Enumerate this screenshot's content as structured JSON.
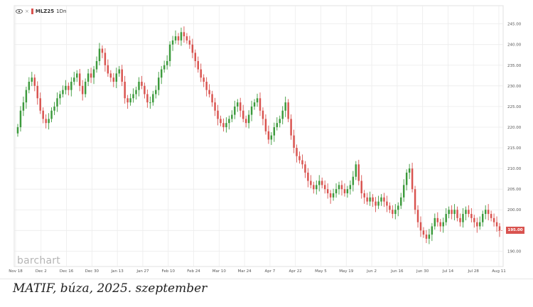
{
  "symbol": "MLZ25",
  "interval": "1Dn",
  "watermark": "barchart",
  "last_price": "195.00",
  "caption": "MATIF, búza, 2025. szeptember",
  "colors": {
    "up": "#3c9a3c",
    "down": "#d9534f",
    "grid": "#ececec",
    "axis_text": "#555555"
  },
  "chart_data": {
    "type": "candlestick",
    "title": "",
    "ylim": [
      188,
      247
    ],
    "yticks": [
      "190.00",
      "195.00",
      "200.00",
      "205.00",
      "210.00",
      "215.00",
      "220.00",
      "225.00",
      "230.00",
      "235.00",
      "240.00",
      "245.00"
    ],
    "ytick_values": [
      190,
      195,
      200,
      205,
      210,
      215,
      220,
      225,
      230,
      235,
      240,
      245
    ],
    "xticks": [
      "Nov 18",
      "Dec 2",
      "Dec 16",
      "Dec 30",
      "Jan 13",
      "Jan 27",
      "Feb 10",
      "Feb 24",
      "Mar 10",
      "Mar 24",
      "Apr 7",
      "Apr 22",
      "May 5",
      "May 19",
      "Jun 2",
      "Jun 16",
      "Jun 30",
      "Jul 14",
      "Jul 28",
      "Aug 11"
    ],
    "closes": [
      220,
      224,
      226,
      229,
      231,
      232,
      230,
      227,
      224,
      222,
      221,
      222,
      224,
      225,
      227,
      228,
      229,
      230,
      229,
      231,
      232,
      233,
      230,
      228,
      231,
      233,
      232,
      234,
      236,
      239,
      238,
      235,
      233,
      232,
      231,
      233,
      234,
      231,
      227,
      226,
      227,
      228,
      229,
      231,
      230,
      228,
      226,
      226,
      228,
      229,
      232,
      234,
      235,
      236,
      240,
      241,
      242,
      241,
      243,
      242,
      241,
      240,
      238,
      236,
      234,
      232,
      231,
      229,
      228,
      226,
      224,
      222,
      221,
      220,
      221,
      222,
      223,
      225,
      226,
      224,
      222,
      221,
      223,
      225,
      226,
      227,
      224,
      222,
      219,
      217,
      218,
      220,
      221,
      222,
      224,
      226,
      222,
      218,
      215,
      213,
      212,
      211,
      209,
      207,
      206,
      205,
      206,
      207,
      206,
      205,
      204,
      203,
      204,
      205,
      206,
      205,
      204,
      205,
      206,
      208,
      211,
      207,
      204,
      203,
      202,
      203,
      202,
      201,
      202,
      203,
      202,
      201,
      200,
      199,
      200,
      201,
      203,
      206,
      209,
      210,
      205,
      200,
      197,
      195,
      194,
      193,
      194,
      196,
      198,
      197,
      196,
      197,
      199,
      200,
      199,
      200,
      198,
      197,
      199,
      200,
      199,
      198,
      197,
      196,
      197,
      199,
      200,
      199,
      198,
      197,
      196,
      195
    ]
  }
}
